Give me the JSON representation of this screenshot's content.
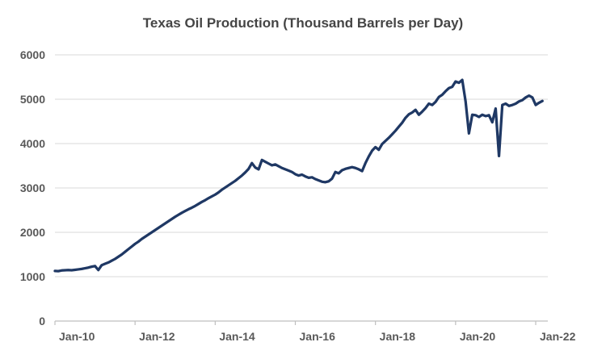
{
  "chart_data": {
    "type": "line",
    "title": "Texas Oil Production (Thousand Barrels per Day)",
    "xlabel": "",
    "ylabel": "",
    "ylim": [
      0,
      6000
    ],
    "y_tick_interval": 1000,
    "y_tick_labels": [
      "0",
      "1000",
      "2000",
      "3000",
      "4000",
      "5000",
      "6000"
    ],
    "x_tick_labels": [
      "Jan-10",
      "Jan-12",
      "Jan-14",
      "Jan-16",
      "Jan-18",
      "Jan-20",
      "Jan-22"
    ],
    "x_tick_interval_months": 24,
    "grid": "horizontal-only",
    "legend": "none",
    "background": "#FFFFFF",
    "colors": {
      "line": "#1F3864",
      "gridline": "#D9D9D9",
      "axis": "#BFBFBF",
      "title_text": "#454545",
      "tick_text": "#595959"
    },
    "series": [
      {
        "name": "Texas oil production (thousand barrels per day)",
        "color": "#1F3864",
        "frequency": "monthly",
        "start": "Jan-2010",
        "end": "Mar-2022",
        "data": [
          {
            "year": 2010,
            "values": [
              1130,
              1125,
              1140,
              1145,
              1150,
              1145,
              1155,
              1165,
              1175,
              1190,
              1205,
              1225
            ]
          },
          {
            "year": 2011,
            "values": [
              1240,
              1150,
              1260,
              1290,
              1320,
              1360,
              1400,
              1450,
              1500,
              1560,
              1620,
              1680
            ]
          },
          {
            "year": 2012,
            "values": [
              1740,
              1790,
              1850,
              1900,
              1950,
              2000,
              2050,
              2100,
              2150,
              2200,
              2250,
              2300
            ]
          },
          {
            "year": 2013,
            "values": [
              2350,
              2395,
              2440,
              2480,
              2520,
              2555,
              2595,
              2640,
              2685,
              2725,
              2770,
              2810
            ]
          },
          {
            "year": 2014,
            "values": [
              2850,
              2900,
              2960,
              3010,
              3060,
              3110,
              3160,
              3220,
              3280,
              3350,
              3430,
              3560
            ]
          },
          {
            "year": 2015,
            "values": [
              3460,
              3420,
              3630,
              3590,
              3550,
              3510,
              3530,
              3490,
              3450,
              3420,
              3390,
              3360
            ]
          },
          {
            "year": 2016,
            "values": [
              3310,
              3280,
              3300,
              3260,
              3230,
              3240,
              3200,
              3170,
              3140,
              3130,
              3150,
              3210
            ]
          },
          {
            "year": 2017,
            "values": [
              3360,
              3330,
              3400,
              3430,
              3450,
              3470,
              3450,
              3420,
              3380,
              3560,
              3710,
              3840
            ]
          },
          {
            "year": 2018,
            "values": [
              3920,
              3860,
              3990,
              4060,
              4130,
              4210,
              4290,
              4380,
              4470,
              4580,
              4660,
              4700
            ]
          },
          {
            "year": 2019,
            "values": [
              4760,
              4650,
              4720,
              4800,
              4900,
              4870,
              4940,
              5050,
              5100,
              5180,
              5250,
              5280
            ]
          },
          {
            "year": 2020,
            "values": [
              5400,
              5370,
              5435,
              4950,
              4230,
              4650,
              4640,
              4600,
              4650,
              4620,
              4640,
              4480
            ]
          },
          {
            "year": 2021,
            "values": [
              4790,
              3720,
              4870,
              4900,
              4850,
              4870,
              4900,
              4950,
              4980,
              5040,
              5080,
              5040
            ]
          },
          {
            "year": 2022,
            "values": [
              4870,
              4920,
              4960
            ]
          }
        ]
      }
    ]
  }
}
